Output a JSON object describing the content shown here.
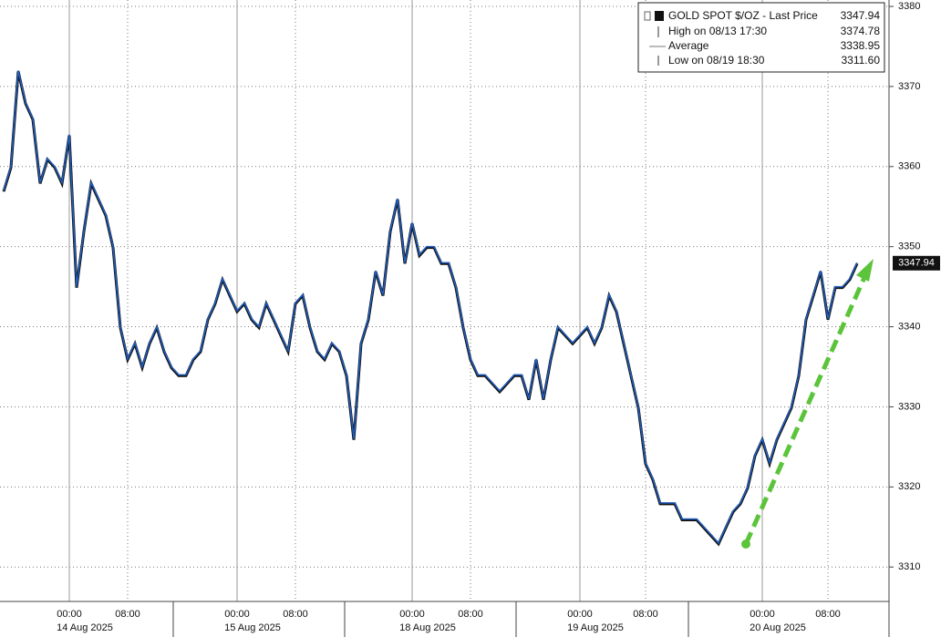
{
  "chart_data": {
    "type": "line",
    "categories": [
      null,
      null,
      null,
      null,
      null,
      null,
      null,
      null,
      null,
      "00:00",
      null,
      null,
      null,
      null,
      null,
      null,
      null,
      "08:00",
      null,
      null,
      null,
      null,
      null,
      null,
      null,
      null,
      null,
      null,
      null,
      null,
      null,
      null,
      "00:00",
      null,
      null,
      null,
      null,
      null,
      null,
      null,
      "08:00",
      null,
      null,
      null,
      null,
      null,
      null,
      null,
      null,
      null,
      null,
      null,
      null,
      null,
      null,
      null,
      "00:00",
      null,
      null,
      null,
      null,
      null,
      null,
      null,
      "08:00",
      null,
      null,
      null,
      null,
      null,
      null,
      null,
      null,
      null,
      null,
      null,
      null,
      null,
      null,
      "00:00",
      null,
      null,
      null,
      null,
      null,
      null,
      null,
      null,
      "08:00",
      null,
      null,
      null,
      null,
      null,
      null,
      null,
      null,
      null,
      null,
      null,
      null,
      null,
      null,
      null,
      "00:00",
      null,
      null,
      null,
      null,
      null,
      null,
      null,
      null,
      "08:00",
      null,
      null,
      null,
      null
    ],
    "date_labels": [
      "14 Aug 2025",
      "15 Aug 2025",
      "18 Aug 2025",
      "19 Aug 2025",
      "20 Aug 2025"
    ],
    "series": [
      {
        "name": "GOLD SPOT $/OZ - Last Price",
        "color": "#1f5fc4",
        "values": [
          3357,
          3360,
          3372,
          3368,
          3366,
          3358,
          3361,
          3360,
          3358,
          3364,
          3345,
          3352,
          3358,
          3356,
          3354,
          3350,
          3340,
          3336,
          3338,
          3335,
          3338,
          3340,
          3337,
          3335,
          3334,
          3334,
          3336,
          3337,
          3341,
          3343,
          3346,
          3344,
          3342,
          3343,
          3341,
          3340,
          3343,
          3341,
          3339,
          3337,
          3343,
          3344,
          3340,
          3337,
          3336,
          3338,
          3337,
          3334,
          3326,
          3338,
          3341,
          3347,
          3344,
          3352,
          3356,
          3348,
          3353,
          3349,
          3350,
          3350,
          3348,
          3348,
          3345,
          3340,
          3336,
          3334,
          3334,
          3333,
          3332,
          3333,
          3334,
          3334,
          3331,
          3336,
          3331,
          3336,
          3340,
          3339,
          3338,
          3339,
          3340,
          3338,
          3340,
          3344,
          3342,
          3338,
          3334,
          3330,
          3323,
          3321,
          3318,
          3318,
          3318,
          3316,
          3316,
          3316,
          3315,
          3314,
          3313,
          3315,
          3317,
          3318,
          3320,
          3324,
          3326,
          3323,
          3326,
          3328,
          3330,
          3334,
          3341,
          3344,
          3347,
          3341,
          3345,
          3345,
          3346,
          3348
        ]
      }
    ],
    "stats": [
      {
        "label": "High on 08/13 17:30",
        "value": "3374.78"
      },
      {
        "label": "Average",
        "value": "3338.95"
      },
      {
        "label": "Low on 08/19 18:30",
        "value": "3311.60"
      }
    ],
    "last_price": "3347.94",
    "ylim": [
      3305.7,
      3380.8
    ],
    "yticks": [
      3310,
      3320,
      3330,
      3340,
      3350,
      3360,
      3370,
      3380
    ],
    "grid": true
  }
}
